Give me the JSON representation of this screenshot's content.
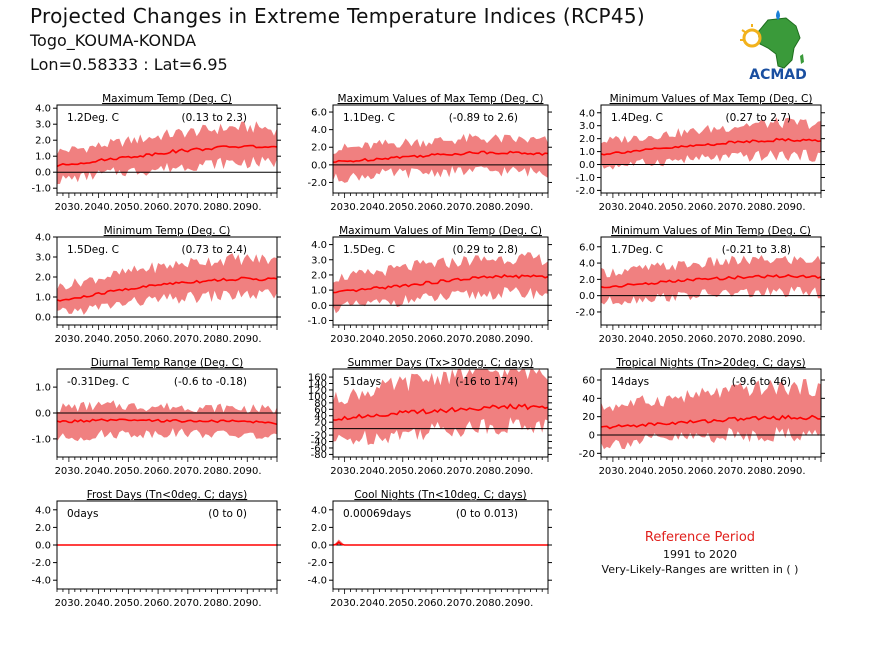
{
  "header": {
    "title": "Projected Changes in Extreme Temperature Indices (RCP45)",
    "station": "Togo_KOUMA-KONDA",
    "coords": "Lon=0.58333 : Lat=6.95"
  },
  "logo": {
    "text": "ACMAD",
    "icon": "africa-map-logo"
  },
  "reference": {
    "title": "Reference Period",
    "years": "1991 to 2020",
    "note": "Very-Likely-Ranges are written in ( )"
  },
  "colors": {
    "band": "#f08080",
    "line": "#ff0000",
    "zero": "#000000",
    "ref_title": "#e0201c",
    "logo_land": "#3a9a3a",
    "logo_text": "#1a4fa0"
  },
  "x_ticks": [
    "2030.",
    "2040.",
    "2050.",
    "2060.",
    "2070.",
    "2080.",
    "2090."
  ],
  "chart_data": [
    {
      "type": "area",
      "title": "Maximum Temp (Deg. C)",
      "change": "1.2Deg. C",
      "range": "(0.13 to 2.3)",
      "xlim": [
        2026,
        2100
      ],
      "ylim": [
        -1.3,
        4.2
      ],
      "yticks": [
        "-1.0",
        "0.0",
        "1.0",
        "2.0",
        "3.0",
        "4.0"
      ],
      "ytick_values": [
        -1,
        0,
        1,
        2,
        3,
        4
      ],
      "x": [
        2026,
        2035,
        2045,
        2055,
        2065,
        2075,
        2085,
        2095,
        2100
      ],
      "mean": [
        0.4,
        0.6,
        0.85,
        1.05,
        1.3,
        1.45,
        1.6,
        1.6,
        1.5
      ],
      "lower": [
        -0.5,
        -0.3,
        0.0,
        0.1,
        0.3,
        0.5,
        0.6,
        0.6,
        0.6
      ],
      "upper": [
        1.3,
        1.5,
        1.8,
        2.1,
        2.4,
        2.6,
        2.8,
        2.8,
        2.6
      ]
    },
    {
      "type": "area",
      "title": "Maximum Values of Max Temp (Deg. C)",
      "change": "1.1Deg. C",
      "range": "(-0.89 to 2.6)",
      "xlim": [
        2026,
        2100
      ],
      "ylim": [
        -3.2,
        6.8
      ],
      "yticks": [
        "-2.0",
        "0.0",
        "2.0",
        "4.0",
        "6.0"
      ],
      "ytick_values": [
        -2,
        0,
        2,
        4,
        6
      ],
      "x": [
        2026,
        2035,
        2045,
        2055,
        2065,
        2075,
        2085,
        2095,
        2100
      ],
      "mean": [
        0.3,
        0.5,
        0.8,
        1.0,
        1.2,
        1.4,
        1.4,
        1.3,
        1.2
      ],
      "lower": [
        -1.6,
        -1.3,
        -1.0,
        -0.9,
        -0.8,
        -0.7,
        -0.7,
        -0.8,
        -0.9
      ],
      "upper": [
        1.8,
        2.0,
        2.4,
        2.6,
        2.8,
        3.0,
        2.9,
        2.8,
        2.7
      ]
    },
    {
      "type": "area",
      "title": "Minimum Values of Max Temp (Deg. C)",
      "change": "1.4Deg. C",
      "range": "(0.27 to 2.7)",
      "xlim": [
        2026,
        2100
      ],
      "ylim": [
        -2.2,
        4.6
      ],
      "yticks": [
        "-2.0",
        "-1.0",
        "0.0",
        "1.0",
        "2.0",
        "3.0",
        "4.0"
      ],
      "ytick_values": [
        -2,
        -1,
        0,
        1,
        2,
        3,
        4
      ],
      "x": [
        2026,
        2035,
        2045,
        2055,
        2065,
        2075,
        2085,
        2095,
        2100
      ],
      "mean": [
        0.8,
        1.0,
        1.2,
        1.4,
        1.6,
        1.8,
        1.9,
        1.9,
        1.8
      ],
      "lower": [
        -0.2,
        0.0,
        0.2,
        0.4,
        0.5,
        0.6,
        0.7,
        0.7,
        0.6
      ],
      "upper": [
        1.8,
        2.0,
        2.3,
        2.5,
        2.8,
        3.1,
        3.2,
        3.2,
        3.0
      ]
    },
    {
      "type": "area",
      "title": "Minimum Temp (Deg. C)",
      "change": "1.5Deg. C",
      "range": "(0.73 to 2.4)",
      "xlim": [
        2026,
        2100
      ],
      "ylim": [
        -0.4,
        4.0
      ],
      "yticks": [
        "0.0",
        "1.0",
        "2.0",
        "3.0",
        "4.0"
      ],
      "ytick_values": [
        0,
        1,
        2,
        3,
        4
      ],
      "x": [
        2026,
        2035,
        2045,
        2055,
        2065,
        2075,
        2085,
        2095,
        2100
      ],
      "mean": [
        0.8,
        1.0,
        1.3,
        1.5,
        1.7,
        1.8,
        1.9,
        1.9,
        1.9
      ],
      "lower": [
        0.2,
        0.35,
        0.6,
        0.8,
        0.9,
        1.0,
        1.1,
        1.1,
        1.1
      ],
      "upper": [
        1.5,
        1.8,
        2.1,
        2.4,
        2.6,
        2.8,
        2.9,
        2.9,
        2.8
      ]
    },
    {
      "type": "area",
      "title": "Maximum Values of Min Temp (Deg. C)",
      "change": "1.5Deg. C",
      "range": "(0.29 to 2.8)",
      "xlim": [
        2026,
        2100
      ],
      "ylim": [
        -1.3,
        4.5
      ],
      "yticks": [
        "-1.0",
        "0.0",
        "1.0",
        "2.0",
        "3.0",
        "4.0"
      ],
      "ytick_values": [
        -1,
        0,
        1,
        2,
        3,
        4
      ],
      "x": [
        2026,
        2035,
        2045,
        2055,
        2065,
        2075,
        2085,
        2095,
        2100
      ],
      "mean": [
        0.8,
        1.0,
        1.2,
        1.4,
        1.6,
        1.8,
        1.9,
        1.9,
        1.9
      ],
      "lower": [
        -0.2,
        0.0,
        0.2,
        0.4,
        0.5,
        0.7,
        0.8,
        0.8,
        0.8
      ],
      "upper": [
        1.8,
        2.0,
        2.3,
        2.6,
        2.8,
        3.0,
        3.1,
        3.1,
        3.0
      ]
    },
    {
      "type": "area",
      "title": "Minimum Values of Min Temp (Deg. C)",
      "change": "1.7Deg. C",
      "range": "(-0.21 to 3.8)",
      "xlim": [
        2026,
        2100
      ],
      "ylim": [
        -3.6,
        7.2
      ],
      "yticks": [
        "-2.0",
        "0.0",
        "2.0",
        "4.0",
        "6.0"
      ],
      "ytick_values": [
        -2,
        0,
        2,
        4,
        6
      ],
      "x": [
        2026,
        2035,
        2045,
        2055,
        2065,
        2075,
        2085,
        2095,
        2100
      ],
      "mean": [
        1.0,
        1.3,
        1.6,
        1.9,
        2.1,
        2.3,
        2.4,
        2.4,
        2.3
      ],
      "lower": [
        -0.8,
        -0.5,
        -0.2,
        0.0,
        0.2,
        0.3,
        0.4,
        0.4,
        0.3
      ],
      "upper": [
        2.8,
        3.1,
        3.5,
        3.8,
        4.1,
        4.3,
        4.4,
        4.4,
        4.3
      ]
    },
    {
      "type": "area",
      "title": "Diurnal Temp Range (Deg. C)",
      "change": "-0.31Deg. C",
      "range": "(-0.6 to -0.18)",
      "xlim": [
        2026,
        2100
      ],
      "ylim": [
        -1.7,
        1.7
      ],
      "yticks": [
        "-1.0",
        "0.0",
        "1.0"
      ],
      "ytick_values": [
        -1,
        0,
        1
      ],
      "x": [
        2026,
        2035,
        2045,
        2055,
        2065,
        2075,
        2085,
        2095,
        2100
      ],
      "mean": [
        -0.35,
        -0.3,
        -0.28,
        -0.3,
        -0.3,
        -0.32,
        -0.32,
        -0.35,
        -0.4
      ],
      "lower": [
        -1.0,
        -0.9,
        -0.8,
        -0.8,
        -0.75,
        -0.8,
        -0.85,
        -0.9,
        -1.0
      ],
      "upper": [
        0.2,
        0.25,
        0.3,
        0.25,
        0.25,
        0.2,
        0.2,
        0.15,
        0.1
      ]
    },
    {
      "type": "area",
      "title": "Summer Days (Tx>30deg. C; days)",
      "change": "51days",
      "range": "(-16 to 174)",
      "xlim": [
        2026,
        2100
      ],
      "ylim": [
        -88,
        185
      ],
      "yticks": [
        "-80",
        "-60",
        "-40",
        "-20",
        "0",
        "20",
        "40",
        "60",
        "80",
        "100",
        "120",
        "140",
        "160"
      ],
      "ytick_values": [
        -80,
        -60,
        -40,
        -20,
        0,
        20,
        40,
        60,
        80,
        100,
        120,
        140,
        160
      ],
      "x": [
        2026,
        2035,
        2045,
        2055,
        2065,
        2075,
        2085,
        2095,
        2100
      ],
      "mean": [
        30,
        38,
        45,
        52,
        58,
        63,
        67,
        68,
        66
      ],
      "lower": [
        -40,
        -30,
        -20,
        -10,
        0,
        5,
        10,
        10,
        8
      ],
      "upper": [
        90,
        110,
        130,
        150,
        165,
        175,
        180,
        180,
        178
      ]
    },
    {
      "type": "area",
      "title": "Tropical Nights (Tn>20deg. C; days)",
      "change": "14days",
      "range": "(-9.6 to 46)",
      "xlim": [
        2026,
        2100
      ],
      "ylim": [
        -24,
        72
      ],
      "yticks": [
        "-20",
        "0",
        "20",
        "40",
        "60"
      ],
      "ytick_values": [
        -20,
        0,
        20,
        40,
        60
      ],
      "x": [
        2026,
        2035,
        2045,
        2055,
        2065,
        2075,
        2085,
        2095,
        2100
      ],
      "mean": [
        8,
        10,
        12,
        14,
        16,
        18,
        19,
        19,
        19
      ],
      "lower": [
        -10,
        -8,
        -5,
        -3,
        -1,
        0,
        1,
        1,
        1
      ],
      "upper": [
        30,
        34,
        38,
        42,
        46,
        50,
        52,
        52,
        50
      ]
    },
    {
      "type": "area",
      "title": "Frost Days (Tn<0deg. C; days)",
      "change": "0days",
      "range": "(0 to 0)",
      "xlim": [
        2026,
        2100
      ],
      "ylim": [
        -5,
        5
      ],
      "yticks": [
        "-4.0",
        "-2.0",
        "0.0",
        "2.0",
        "4.0"
      ],
      "ytick_values": [
        -4,
        -2,
        0,
        2,
        4
      ],
      "x": [
        2026,
        2100
      ],
      "mean": [
        0,
        0
      ],
      "lower": [
        0,
        0
      ],
      "upper": [
        0,
        0
      ]
    },
    {
      "type": "area",
      "title": "Cool Nights (Tn<10deg. C; days)",
      "change": "0.00069days",
      "range": "(0 to 0.013)",
      "xlim": [
        2026,
        2100
      ],
      "ylim": [
        -5,
        5
      ],
      "yticks": [
        "-4.0",
        "-2.0",
        "0.0",
        "2.0",
        "4.0"
      ],
      "ytick_values": [
        -4,
        -2,
        0,
        2,
        4
      ],
      "x": [
        2026,
        2027,
        2028,
        2029,
        2030,
        2100
      ],
      "mean": [
        0,
        0.05,
        0.3,
        0.05,
        0,
        0
      ],
      "lower": [
        0,
        0,
        0,
        0,
        0,
        0
      ],
      "upper": [
        0,
        0.3,
        0.7,
        0.3,
        0,
        0
      ]
    }
  ]
}
